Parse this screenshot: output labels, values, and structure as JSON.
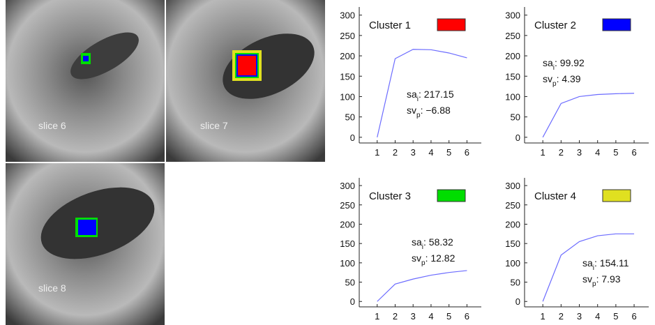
{
  "images": [
    {
      "label": "slice 6"
    },
    {
      "label": "slice 7"
    },
    {
      "label": "slice 8"
    }
  ],
  "chart_data": [
    {
      "type": "line",
      "x": [
        1,
        2,
        3,
        4,
        5,
        6
      ],
      "xlim": [
        0,
        6.8
      ],
      "xticks": [
        1,
        2,
        3,
        4,
        5,
        6
      ],
      "ylim": [
        -14,
        320
      ],
      "yticks": [
        0,
        50,
        100,
        150,
        200,
        250,
        300
      ],
      "series": [
        {
          "name": "Cluster 1",
          "color": "#6b6bff",
          "swatch": "#ff0000",
          "values": [
            0,
            193,
            216,
            215,
            207,
            195
          ]
        }
      ],
      "annotations": [
        {
          "label": "sa",
          "sub": "i",
          "text": ": 217.15"
        },
        {
          "label": "sv",
          "sub": "p",
          "text": ": −6.88"
        }
      ]
    },
    {
      "type": "line",
      "x": [
        1,
        2,
        3,
        4,
        5,
        6
      ],
      "xlim": [
        0,
        6.8
      ],
      "xticks": [
        1,
        2,
        3,
        4,
        5,
        6
      ],
      "ylim": [
        -14,
        320
      ],
      "yticks": [
        0,
        50,
        100,
        150,
        200,
        250,
        300
      ],
      "series": [
        {
          "name": "Cluster 2",
          "color": "#6b6bff",
          "swatch": "#0000ff",
          "values": [
            0,
            83,
            100,
            105,
            107,
            108
          ]
        }
      ],
      "annotations": [
        {
          "label": "sa",
          "sub": "i",
          "text": ": 99.92"
        },
        {
          "label": "sv",
          "sub": "p",
          "text": ": 4.39"
        }
      ]
    },
    {
      "type": "line",
      "x": [
        1,
        2,
        3,
        4,
        5,
        6
      ],
      "xlim": [
        0,
        6.8
      ],
      "xticks": [
        1,
        2,
        3,
        4,
        5,
        6
      ],
      "ylim": [
        -14,
        320
      ],
      "yticks": [
        0,
        50,
        100,
        150,
        200,
        250,
        300
      ],
      "series": [
        {
          "name": "Cluster 3",
          "color": "#6b6bff",
          "swatch": "#00dd00",
          "values": [
            0,
            45,
            58,
            68,
            75,
            80
          ]
        }
      ],
      "annotations": [
        {
          "label": "sa",
          "sub": "i",
          "text": ": 58.32"
        },
        {
          "label": "sv",
          "sub": "p",
          "text": ": 12.82"
        }
      ]
    },
    {
      "type": "line",
      "x": [
        1,
        2,
        3,
        4,
        5,
        6
      ],
      "xlim": [
        0,
        6.8
      ],
      "xticks": [
        1,
        2,
        3,
        4,
        5,
        6
      ],
      "ylim": [
        -14,
        320
      ],
      "yticks": [
        0,
        50,
        100,
        150,
        200,
        250,
        300
      ],
      "series": [
        {
          "name": "Cluster 4",
          "color": "#6b6bff",
          "swatch": "#e0e020",
          "values": [
            0,
            120,
            155,
            170,
            175,
            175
          ]
        }
      ],
      "annotations": [
        {
          "label": "sa",
          "sub": "i",
          "text": ": 154.11"
        },
        {
          "label": "sv",
          "sub": "p",
          "text": ": 7.93"
        }
      ]
    }
  ]
}
